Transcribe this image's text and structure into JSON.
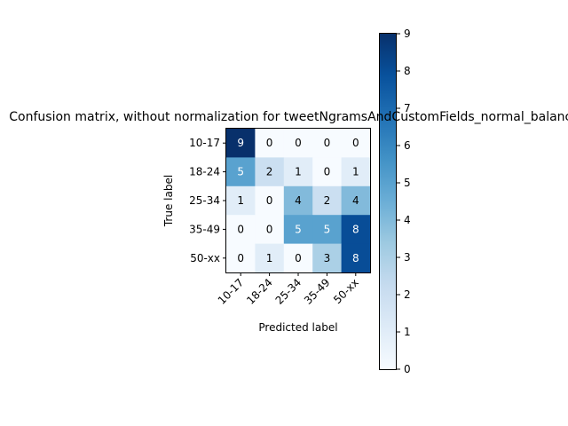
{
  "chart_data": {
    "type": "heatmap",
    "title": "Confusion matrix, without normalization for tweetNgramsAndCustomFields_normal_balanced",
    "xlabel": "Predicted label",
    "ylabel": "True label",
    "x_categories": [
      "10-17",
      "18-24",
      "25-34",
      "35-49",
      "50-xx"
    ],
    "y_categories": [
      "10-17",
      "18-24",
      "25-34",
      "35-49",
      "50-xx"
    ],
    "values": [
      [
        9,
        0,
        0,
        0,
        0
      ],
      [
        5,
        2,
        1,
        0,
        1
      ],
      [
        1,
        0,
        4,
        2,
        4
      ],
      [
        0,
        0,
        5,
        5,
        8
      ],
      [
        0,
        1,
        0,
        3,
        8
      ]
    ],
    "colorbar": {
      "min": 0,
      "max": 9,
      "ticks": [
        0,
        1,
        2,
        3,
        4,
        5,
        6,
        7,
        8,
        9
      ],
      "colormap": "Blues"
    },
    "colors": {
      "low": "#f7fbff",
      "high": "#08306b"
    }
  }
}
